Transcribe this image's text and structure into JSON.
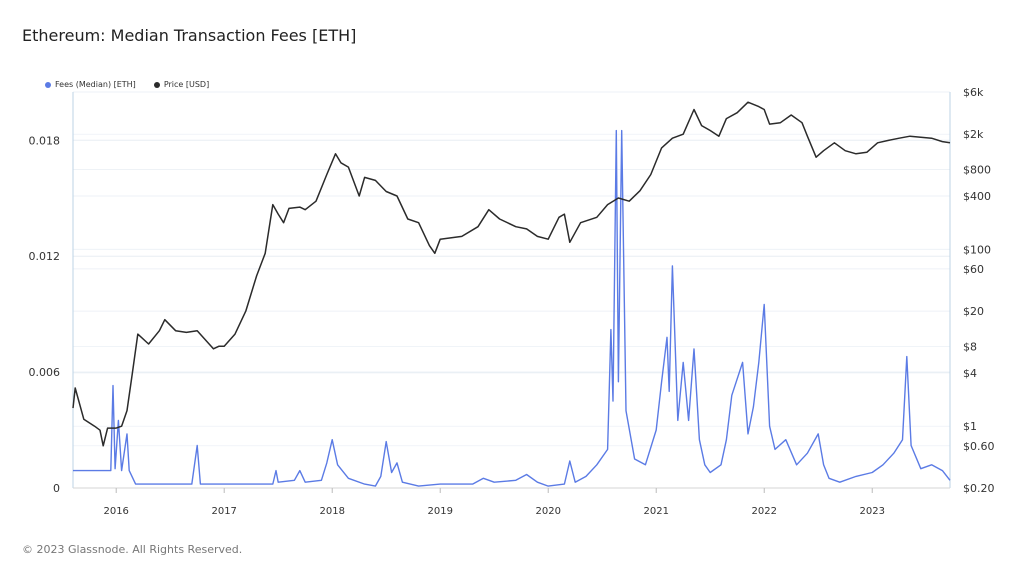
{
  "title": "Ethereum: Median Transaction Fees [ETH]",
  "footer": "© 2023 Glassnode. All Rights Reserved.",
  "colors": {
    "fees": "#5b7be5",
    "price": "#2b2b2b",
    "grid": "#e8eef4",
    "axis": "#bcd3e6"
  },
  "chart_data": {
    "type": "line",
    "title": "Ethereum: Median Transaction Fees [ETH]",
    "xlabel": "",
    "ylabel": "",
    "grid": true,
    "legend_position": "top-left",
    "x_tick_labels": [
      "2016",
      "2017",
      "2018",
      "2019",
      "2020",
      "2021",
      "2022",
      "2023"
    ],
    "y_left": {
      "ticks": [
        0,
        0.006,
        0.012,
        0.018
      ],
      "tick_labels": [
        "0",
        "0.006",
        "0.012",
        "0.018"
      ],
      "range": [
        0,
        0.0205
      ]
    },
    "y_right": {
      "scale": "log",
      "ticks": [
        0.2,
        0.6,
        1,
        4,
        8,
        20,
        60,
        100,
        400,
        800,
        2000,
        6000
      ],
      "tick_labels": [
        "$0.20",
        "$0.60",
        "$1",
        "$4",
        "$8",
        "$20",
        "$60",
        "$100",
        "$400",
        "$800",
        "$2k",
        "$6k"
      ],
      "range": [
        0.2,
        6000
      ]
    },
    "series": [
      {
        "name": "Fees (Median) [ETH]",
        "axis": "left",
        "points": [
          [
            2015.6,
            0.0009
          ],
          [
            2015.8,
            0.0009
          ],
          [
            2015.95,
            0.0009
          ],
          [
            2015.97,
            0.0053
          ],
          [
            2015.99,
            0.001
          ],
          [
            2016.02,
            0.0035
          ],
          [
            2016.05,
            0.0009
          ],
          [
            2016.1,
            0.0028
          ],
          [
            2016.12,
            0.0009
          ],
          [
            2016.18,
            0.0002
          ],
          [
            2016.4,
            0.0002
          ],
          [
            2016.7,
            0.0002
          ],
          [
            2016.75,
            0.0022
          ],
          [
            2016.78,
            0.0002
          ],
          [
            2017.0,
            0.0002
          ],
          [
            2017.45,
            0.0002
          ],
          [
            2017.48,
            0.0009
          ],
          [
            2017.5,
            0.0003
          ],
          [
            2017.65,
            0.0004
          ],
          [
            2017.7,
            0.0009
          ],
          [
            2017.75,
            0.0003
          ],
          [
            2017.9,
            0.0004
          ],
          [
            2017.95,
            0.0013
          ],
          [
            2018.0,
            0.0025
          ],
          [
            2018.05,
            0.0012
          ],
          [
            2018.15,
            0.0005
          ],
          [
            2018.3,
            0.0002
          ],
          [
            2018.4,
            0.0001
          ],
          [
            2018.45,
            0.0006
          ],
          [
            2018.5,
            0.0024
          ],
          [
            2018.55,
            0.0008
          ],
          [
            2018.6,
            0.0013
          ],
          [
            2018.65,
            0.0003
          ],
          [
            2018.8,
            0.0001
          ],
          [
            2019.0,
            0.0002
          ],
          [
            2019.3,
            0.0002
          ],
          [
            2019.4,
            0.0005
          ],
          [
            2019.5,
            0.0003
          ],
          [
            2019.7,
            0.0004
          ],
          [
            2019.8,
            0.0007
          ],
          [
            2019.9,
            0.0003
          ],
          [
            2020.0,
            0.0001
          ],
          [
            2020.15,
            0.0002
          ],
          [
            2020.2,
            0.0014
          ],
          [
            2020.25,
            0.0003
          ],
          [
            2020.35,
            0.0006
          ],
          [
            2020.45,
            0.0012
          ],
          [
            2020.55,
            0.002
          ],
          [
            2020.58,
            0.0082
          ],
          [
            2020.6,
            0.0045
          ],
          [
            2020.63,
            0.0185
          ],
          [
            2020.65,
            0.0055
          ],
          [
            2020.68,
            0.0185
          ],
          [
            2020.72,
            0.004
          ],
          [
            2020.8,
            0.0015
          ],
          [
            2020.9,
            0.0012
          ],
          [
            2021.0,
            0.003
          ],
          [
            2021.05,
            0.0055
          ],
          [
            2021.1,
            0.0078
          ],
          [
            2021.12,
            0.005
          ],
          [
            2021.15,
            0.0115
          ],
          [
            2021.2,
            0.0035
          ],
          [
            2021.25,
            0.0065
          ],
          [
            2021.3,
            0.0035
          ],
          [
            2021.35,
            0.0072
          ],
          [
            2021.4,
            0.0025
          ],
          [
            2021.45,
            0.0012
          ],
          [
            2021.5,
            0.0008
          ],
          [
            2021.6,
            0.0012
          ],
          [
            2021.65,
            0.0025
          ],
          [
            2021.7,
            0.0048
          ],
          [
            2021.8,
            0.0065
          ],
          [
            2021.85,
            0.0028
          ],
          [
            2021.9,
            0.0042
          ],
          [
            2021.95,
            0.0065
          ],
          [
            2022.0,
            0.0095
          ],
          [
            2022.05,
            0.0032
          ],
          [
            2022.1,
            0.002
          ],
          [
            2022.2,
            0.0025
          ],
          [
            2022.3,
            0.0012
          ],
          [
            2022.4,
            0.0018
          ],
          [
            2022.5,
            0.0028
          ],
          [
            2022.55,
            0.0012
          ],
          [
            2022.6,
            0.0005
          ],
          [
            2022.7,
            0.0003
          ],
          [
            2022.85,
            0.0006
          ],
          [
            2023.0,
            0.0008
          ],
          [
            2023.1,
            0.0012
          ],
          [
            2023.2,
            0.0018
          ],
          [
            2023.28,
            0.0025
          ],
          [
            2023.32,
            0.0068
          ],
          [
            2023.36,
            0.0022
          ],
          [
            2023.45,
            0.001
          ],
          [
            2023.55,
            0.0012
          ],
          [
            2023.65,
            0.0009
          ],
          [
            2023.72,
            0.0004
          ]
        ]
      },
      {
        "name": "Price [USD]",
        "axis": "right",
        "points": [
          [
            2015.6,
            1.6
          ],
          [
            2015.62,
            2.7
          ],
          [
            2015.7,
            1.2
          ],
          [
            2015.8,
            1.0
          ],
          [
            2015.85,
            0.9
          ],
          [
            2015.88,
            0.6
          ],
          [
            2015.92,
            0.95
          ],
          [
            2016.0,
            0.95
          ],
          [
            2016.05,
            1.0
          ],
          [
            2016.1,
            1.5
          ],
          [
            2016.15,
            4.0
          ],
          [
            2016.2,
            11
          ],
          [
            2016.3,
            8.5
          ],
          [
            2016.4,
            12
          ],
          [
            2016.45,
            16
          ],
          [
            2016.55,
            12
          ],
          [
            2016.65,
            11.5
          ],
          [
            2016.75,
            12
          ],
          [
            2016.9,
            7.5
          ],
          [
            2016.95,
            8
          ],
          [
            2017.0,
            8
          ],
          [
            2017.1,
            11
          ],
          [
            2017.2,
            20
          ],
          [
            2017.3,
            50
          ],
          [
            2017.38,
            90
          ],
          [
            2017.45,
            320
          ],
          [
            2017.5,
            250
          ],
          [
            2017.55,
            200
          ],
          [
            2017.6,
            290
          ],
          [
            2017.7,
            300
          ],
          [
            2017.75,
            280
          ],
          [
            2017.85,
            350
          ],
          [
            2017.95,
            700
          ],
          [
            2018.03,
            1200
          ],
          [
            2018.08,
            950
          ],
          [
            2018.15,
            850
          ],
          [
            2018.25,
            400
          ],
          [
            2018.3,
            650
          ],
          [
            2018.4,
            600
          ],
          [
            2018.5,
            450
          ],
          [
            2018.6,
            400
          ],
          [
            2018.7,
            220
          ],
          [
            2018.8,
            200
          ],
          [
            2018.9,
            110
          ],
          [
            2018.95,
            90
          ],
          [
            2019.0,
            130
          ],
          [
            2019.2,
            140
          ],
          [
            2019.35,
            180
          ],
          [
            2019.45,
            280
          ],
          [
            2019.55,
            220
          ],
          [
            2019.7,
            180
          ],
          [
            2019.8,
            170
          ],
          [
            2019.9,
            140
          ],
          [
            2020.0,
            130
          ],
          [
            2020.1,
            230
          ],
          [
            2020.15,
            250
          ],
          [
            2020.2,
            120
          ],
          [
            2020.3,
            200
          ],
          [
            2020.45,
            230
          ],
          [
            2020.55,
            320
          ],
          [
            2020.65,
            380
          ],
          [
            2020.75,
            350
          ],
          [
            2020.85,
            460
          ],
          [
            2020.95,
            700
          ],
          [
            2021.05,
            1400
          ],
          [
            2021.15,
            1800
          ],
          [
            2021.25,
            2000
          ],
          [
            2021.35,
            3800
          ],
          [
            2021.42,
            2500
          ],
          [
            2021.5,
            2200
          ],
          [
            2021.58,
            1900
          ],
          [
            2021.65,
            3000
          ],
          [
            2021.75,
            3500
          ],
          [
            2021.85,
            4600
          ],
          [
            2021.95,
            4100
          ],
          [
            2022.0,
            3800
          ],
          [
            2022.05,
            2600
          ],
          [
            2022.15,
            2700
          ],
          [
            2022.25,
            3300
          ],
          [
            2022.35,
            2700
          ],
          [
            2022.4,
            1900
          ],
          [
            2022.48,
            1100
          ],
          [
            2022.55,
            1300
          ],
          [
            2022.65,
            1600
          ],
          [
            2022.75,
            1300
          ],
          [
            2022.85,
            1200
          ],
          [
            2022.95,
            1250
          ],
          [
            2023.05,
            1600
          ],
          [
            2023.15,
            1700
          ],
          [
            2023.25,
            1800
          ],
          [
            2023.35,
            1900
          ],
          [
            2023.45,
            1850
          ],
          [
            2023.55,
            1800
          ],
          [
            2023.65,
            1650
          ],
          [
            2023.72,
            1600
          ]
        ]
      }
    ]
  }
}
